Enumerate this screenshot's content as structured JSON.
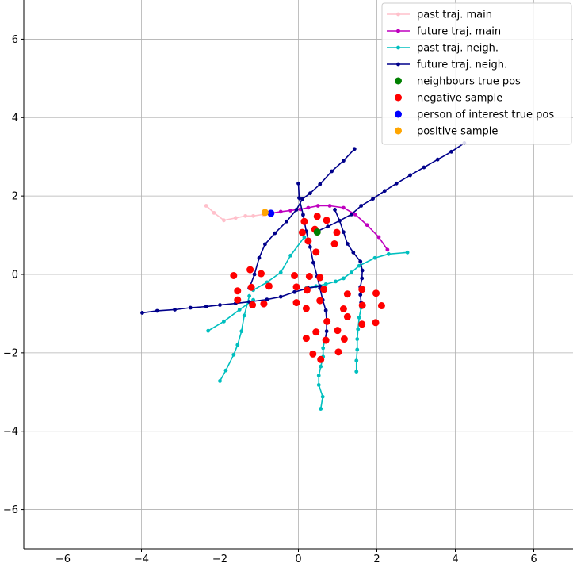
{
  "chart_data": {
    "type": "scatter",
    "title": "",
    "xlabel": "",
    "ylabel": "",
    "xlim": [
      -7,
      7
    ],
    "ylim": [
      -7,
      7
    ],
    "grid": true,
    "legend_position": "top-right",
    "x_ticks": [
      -6,
      -4,
      -2,
      0,
      2,
      4,
      6
    ],
    "y_ticks": [
      -6,
      -4,
      -2,
      0,
      2,
      4,
      6
    ],
    "x_tick_labels": [
      "−6",
      "−4",
      "−2",
      "0",
      "2",
      "4",
      "6"
    ],
    "y_tick_labels": [
      "−6",
      "−4",
      "−2",
      "0",
      "2",
      "4",
      "6"
    ],
    "legend": [
      {
        "label": "past traj. main",
        "kind": "line",
        "color": "#ffc0cb"
      },
      {
        "label": "future traj. main",
        "kind": "line",
        "color": "#bf00bf"
      },
      {
        "label": "past traj. neigh.",
        "kind": "line",
        "color": "#00bfbf"
      },
      {
        "label": "future traj. neigh.",
        "kind": "line",
        "color": "#00008b"
      },
      {
        "label": "neighbours true pos",
        "kind": "dot",
        "color": "#008000"
      },
      {
        "label": "negative sample",
        "kind": "dot",
        "color": "#ff0000"
      },
      {
        "label": "person of interest true pos",
        "kind": "dot",
        "color": "#0000ff"
      },
      {
        "label": "positive sample",
        "kind": "dot",
        "color": "#ffa500"
      }
    ],
    "series": [
      {
        "name": "past traj. main",
        "kind": "line",
        "color": "#ffc0cb",
        "points": [
          [
            -2.35,
            1.75
          ],
          [
            -2.15,
            1.57
          ],
          [
            -1.9,
            1.38
          ],
          [
            -1.6,
            1.44
          ],
          [
            -1.35,
            1.49
          ],
          [
            -1.15,
            1.49
          ],
          [
            -0.9,
            1.53
          ]
        ]
      },
      {
        "name": "future traj. main",
        "kind": "line",
        "color": "#bf00bf",
        "points": [
          [
            -0.7,
            1.56
          ],
          [
            -0.45,
            1.6
          ],
          [
            -0.2,
            1.63
          ],
          [
            0.05,
            1.66
          ],
          [
            0.25,
            1.7
          ],
          [
            0.5,
            1.75
          ],
          [
            0.8,
            1.75
          ],
          [
            1.15,
            1.7
          ],
          [
            1.45,
            1.53
          ],
          [
            1.75,
            1.26
          ],
          [
            2.05,
            0.95
          ],
          [
            2.27,
            0.63
          ]
        ]
      },
      {
        "name": "past traj. neigh.",
        "kind": "line",
        "color": "#00bfbf",
        "points": [
          [
            -1.15,
            -0.4
          ],
          [
            -0.8,
            -0.2
          ],
          [
            -0.45,
            0.05
          ],
          [
            -0.2,
            0.48
          ],
          [
            0.15,
            0.95
          ]
        ]
      },
      {
        "name": "past traj. neigh.",
        "kind": "line",
        "color": "#00bfbf",
        "points": [
          [
            -2.3,
            -1.44
          ],
          [
            -1.9,
            -1.2
          ],
          [
            -1.5,
            -0.9
          ],
          [
            -1.15,
            -0.65
          ]
        ]
      },
      {
        "name": "past traj. neigh.",
        "kind": "line",
        "color": "#00bfbf",
        "points": [
          [
            -2.0,
            -2.72
          ],
          [
            -1.85,
            -2.45
          ],
          [
            -1.65,
            -2.05
          ],
          [
            -1.55,
            -1.8
          ],
          [
            -1.45,
            -1.45
          ],
          [
            -1.38,
            -1.05
          ],
          [
            -1.25,
            -0.55
          ]
        ]
      },
      {
        "name": "past traj. neigh.",
        "kind": "line",
        "color": "#00bfbf",
        "points": [
          [
            0.2,
            -0.35
          ],
          [
            0.45,
            -0.3
          ],
          [
            0.7,
            -0.25
          ],
          [
            0.95,
            -0.18
          ],
          [
            1.15,
            -0.1
          ],
          [
            1.35,
            0.05
          ],
          [
            1.55,
            0.22
          ],
          [
            1.95,
            0.42
          ],
          [
            2.3,
            0.52
          ],
          [
            2.78,
            0.56
          ]
        ]
      },
      {
        "name": "past traj. neigh.",
        "kind": "line",
        "color": "#00bfbf",
        "points": [
          [
            1.48,
            -2.48
          ],
          [
            1.48,
            -2.2
          ],
          [
            1.5,
            -1.92
          ],
          [
            1.5,
            -1.65
          ],
          [
            1.52,
            -1.4
          ],
          [
            1.55,
            -1.1
          ],
          [
            1.6,
            -0.85
          ]
        ]
      },
      {
        "name": "past traj. neigh.",
        "kind": "line",
        "color": "#00bfbf",
        "points": [
          [
            0.57,
            -3.43
          ],
          [
            0.62,
            -3.12
          ],
          [
            0.52,
            -2.82
          ],
          [
            0.52,
            -2.58
          ],
          [
            0.57,
            -2.35
          ],
          [
            0.63,
            -2.1
          ],
          [
            0.63,
            -1.88
          ],
          [
            0.67,
            -1.67
          ]
        ]
      },
      {
        "name": "future traj. neigh.",
        "kind": "line",
        "color": "#00008b",
        "points": [
          [
            -3.98,
            -0.98
          ],
          [
            -3.6,
            -0.93
          ],
          [
            -3.15,
            -0.9
          ],
          [
            -2.75,
            -0.85
          ],
          [
            -2.35,
            -0.82
          ],
          [
            -2.0,
            -0.78
          ],
          [
            -1.6,
            -0.74
          ],
          [
            -1.25,
            -0.7
          ],
          [
            -0.8,
            -0.64
          ],
          [
            -0.45,
            -0.57
          ],
          [
            -0.1,
            -0.45
          ],
          [
            0.25,
            -0.35
          ],
          [
            0.55,
            -0.3
          ]
        ]
      },
      {
        "name": "future traj. neigh.",
        "kind": "line",
        "color": "#00008b",
        "points": [
          [
            -1.25,
            -0.35
          ],
          [
            -1.12,
            0.0
          ],
          [
            -1.0,
            0.42
          ],
          [
            -0.85,
            0.77
          ],
          [
            -0.6,
            1.05
          ],
          [
            -0.3,
            1.35
          ],
          [
            -0.05,
            1.65
          ],
          [
            0.1,
            1.92
          ],
          [
            0.3,
            2.07
          ],
          [
            0.55,
            2.3
          ],
          [
            0.85,
            2.63
          ],
          [
            1.15,
            2.9
          ],
          [
            1.43,
            3.2
          ]
        ]
      },
      {
        "name": "future traj. neigh.",
        "kind": "line",
        "color": "#00008b",
        "points": [
          [
            0.0,
            2.32
          ],
          [
            0.02,
            1.95
          ],
          [
            0.12,
            1.52
          ],
          [
            0.2,
            1.1
          ],
          [
            0.3,
            0.7
          ],
          [
            0.38,
            0.3
          ],
          [
            0.48,
            -0.05
          ],
          [
            0.55,
            -0.35
          ],
          [
            0.62,
            -0.65
          ],
          [
            0.7,
            -0.92
          ],
          [
            0.72,
            -1.2
          ],
          [
            0.72,
            -1.45
          ],
          [
            0.68,
            -1.68
          ]
        ]
      },
      {
        "name": "future traj. neigh.",
        "kind": "line",
        "color": "#00008b",
        "points": [
          [
            0.48,
            1.1
          ],
          [
            0.75,
            1.22
          ],
          [
            1.05,
            1.37
          ],
          [
            1.35,
            1.53
          ],
          [
            1.6,
            1.75
          ],
          [
            1.9,
            1.93
          ],
          [
            2.2,
            2.13
          ],
          [
            2.5,
            2.32
          ],
          [
            2.85,
            2.53
          ],
          [
            3.2,
            2.73
          ],
          [
            3.55,
            2.93
          ],
          [
            3.9,
            3.13
          ],
          [
            4.23,
            3.35
          ]
        ]
      },
      {
        "name": "future traj. neigh.",
        "kind": "line",
        "color": "#00008b",
        "points": [
          [
            0.93,
            1.65
          ],
          [
            1.05,
            1.37
          ],
          [
            1.15,
            1.08
          ],
          [
            1.25,
            0.78
          ],
          [
            1.4,
            0.56
          ],
          [
            1.58,
            0.33
          ],
          [
            1.63,
            0.1
          ],
          [
            1.62,
            -0.1
          ],
          [
            1.58,
            -0.32
          ],
          [
            1.58,
            -0.52
          ],
          [
            1.6,
            -0.72
          ],
          [
            1.63,
            -0.8
          ]
        ]
      },
      {
        "name": "negative sample",
        "kind": "scatter",
        "color": "#ff0000",
        "points": [
          [
            0.48,
            1.48
          ],
          [
            0.72,
            1.38
          ],
          [
            0.15,
            1.35
          ],
          [
            0.42,
            1.15
          ],
          [
            0.1,
            1.07
          ],
          [
            0.98,
            1.07
          ],
          [
            0.25,
            0.85
          ],
          [
            0.92,
            0.78
          ],
          [
            0.45,
            0.57
          ],
          [
            -1.23,
            0.12
          ],
          [
            -0.95,
            0.02
          ],
          [
            -1.65,
            -0.03
          ],
          [
            -0.1,
            -0.03
          ],
          [
            0.28,
            -0.05
          ],
          [
            0.55,
            -0.08
          ],
          [
            -1.2,
            -0.33
          ],
          [
            -0.75,
            -0.3
          ],
          [
            -0.05,
            -0.32
          ],
          [
            0.22,
            -0.4
          ],
          [
            0.65,
            -0.38
          ],
          [
            1.62,
            -0.38
          ],
          [
            -1.55,
            -0.42
          ],
          [
            1.98,
            -0.48
          ],
          [
            -1.55,
            -0.65
          ],
          [
            -0.05,
            -0.72
          ],
          [
            0.55,
            -0.67
          ],
          [
            1.25,
            -0.5
          ],
          [
            -1.17,
            -0.78
          ],
          [
            -0.88,
            -0.75
          ],
          [
            0.2,
            -0.87
          ],
          [
            1.63,
            -0.79
          ],
          [
            2.12,
            -0.8
          ],
          [
            1.15,
            -0.88
          ],
          [
            1.25,
            -1.08
          ],
          [
            0.73,
            -1.2
          ],
          [
            1.62,
            -1.27
          ],
          [
            1.97,
            -1.23
          ],
          [
            0.45,
            -1.47
          ],
          [
            1.0,
            -1.43
          ],
          [
            0.2,
            -1.63
          ],
          [
            0.7,
            -1.68
          ],
          [
            1.17,
            -1.65
          ],
          [
            0.37,
            -2.03
          ],
          [
            1.02,
            -1.98
          ],
          [
            0.57,
            -2.17
          ]
        ]
      },
      {
        "name": "neighbours true pos",
        "kind": "scatter",
        "color": "#008000",
        "points": [
          [
            0.48,
            1.08
          ]
        ]
      },
      {
        "name": "person of interest true pos",
        "kind": "scatter",
        "color": "#0000ff",
        "points": [
          [
            -0.7,
            1.56
          ]
        ]
      },
      {
        "name": "positive sample",
        "kind": "scatter",
        "color": "#ffa500",
        "points": [
          [
            -0.85,
            1.58
          ]
        ]
      }
    ]
  }
}
